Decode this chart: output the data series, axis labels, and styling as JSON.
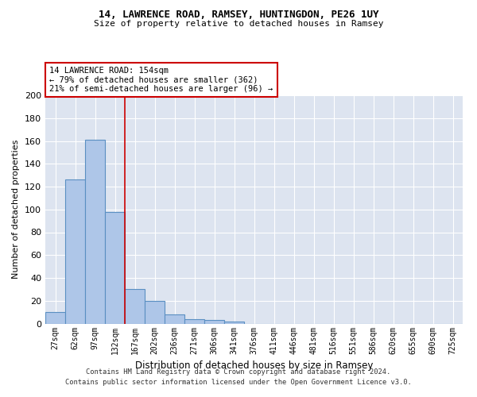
{
  "title1": "14, LAWRENCE ROAD, RAMSEY, HUNTINGDON, PE26 1UY",
  "title2": "Size of property relative to detached houses in Ramsey",
  "xlabel": "Distribution of detached houses by size in Ramsey",
  "ylabel": "Number of detached properties",
  "bar_labels": [
    "27sqm",
    "62sqm",
    "97sqm",
    "132sqm",
    "167sqm",
    "202sqm",
    "236sqm",
    "271sqm",
    "306sqm",
    "341sqm",
    "376sqm",
    "411sqm",
    "446sqm",
    "481sqm",
    "516sqm",
    "551sqm",
    "586sqm",
    "620sqm",
    "655sqm",
    "690sqm",
    "725sqm"
  ],
  "bar_values": [
    10,
    126,
    161,
    98,
    30,
    20,
    8,
    4,
    3,
    2,
    0,
    0,
    0,
    0,
    0,
    0,
    0,
    0,
    0,
    0,
    0
  ],
  "bar_color": "#aec6e8",
  "bar_edge_color": "#5a8fc2",
  "background_color": "#dde4f0",
  "grid_color": "#ffffff",
  "annotation_line1": "14 LAWRENCE ROAD: 154sqm",
  "annotation_line2": "← 79% of detached houses are smaller (362)",
  "annotation_line3": "21% of semi-detached houses are larger (96) →",
  "annotation_box_color": "#ffffff",
  "annotation_box_edge": "#cc0000",
  "redline_x": 3.5,
  "ylim": [
    0,
    200
  ],
  "yticks": [
    0,
    20,
    40,
    60,
    80,
    100,
    120,
    140,
    160,
    180,
    200
  ],
  "footer1": "Contains HM Land Registry data © Crown copyright and database right 2024.",
  "footer2": "Contains public sector information licensed under the Open Government Licence v3.0."
}
